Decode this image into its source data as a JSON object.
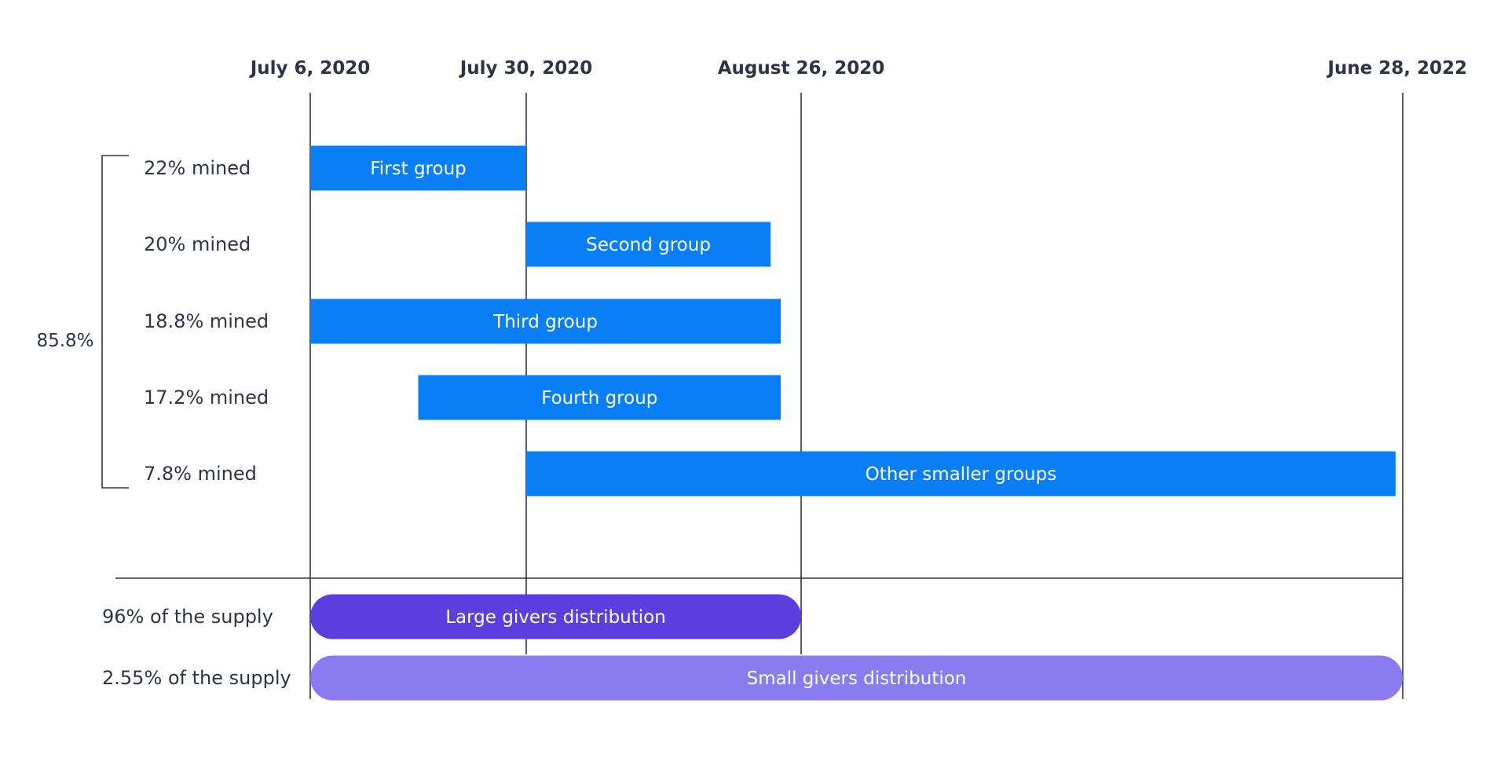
{
  "chart_data": {
    "type": "timeline",
    "dates": [
      "July 6, 2020",
      "July 30, 2020",
      "August 26, 2020",
      "June 28, 2022"
    ],
    "mining_groups": [
      {
        "label": "22% mined",
        "name": "First group",
        "start": "2020-07-06",
        "end": "2020-07-30"
      },
      {
        "label": "20% mined",
        "name": "Second group",
        "start": "2020-07-30",
        "end": "2020-08-23"
      },
      {
        "label": "18.8% mined",
        "name": "Third group",
        "start": "2020-07-06",
        "end": "2020-08-24"
      },
      {
        "label": "17.2% mined",
        "name": "Fourth group",
        "start": "2020-07-18",
        "end": "2020-08-24"
      },
      {
        "label": "7.8% mined",
        "name": "Other smaller groups",
        "start": "2020-07-30",
        "end": "2022-06-20"
      }
    ],
    "bracket_total": "85.8%",
    "distributions": [
      {
        "label": "96% of the supply",
        "name": "Large givers distribution",
        "start": "2020-07-06",
        "end": "2020-08-26",
        "color": "#5b3fde"
      },
      {
        "label": "2.55% of the supply",
        "name": "Small givers distribution",
        "start": "2020-07-06",
        "end": "2022-06-28",
        "color": "#8a7bf0"
      }
    ],
    "colors": {
      "bar": "#0a7ff5",
      "text": "#2e3448",
      "lines": "#2e3448"
    }
  }
}
